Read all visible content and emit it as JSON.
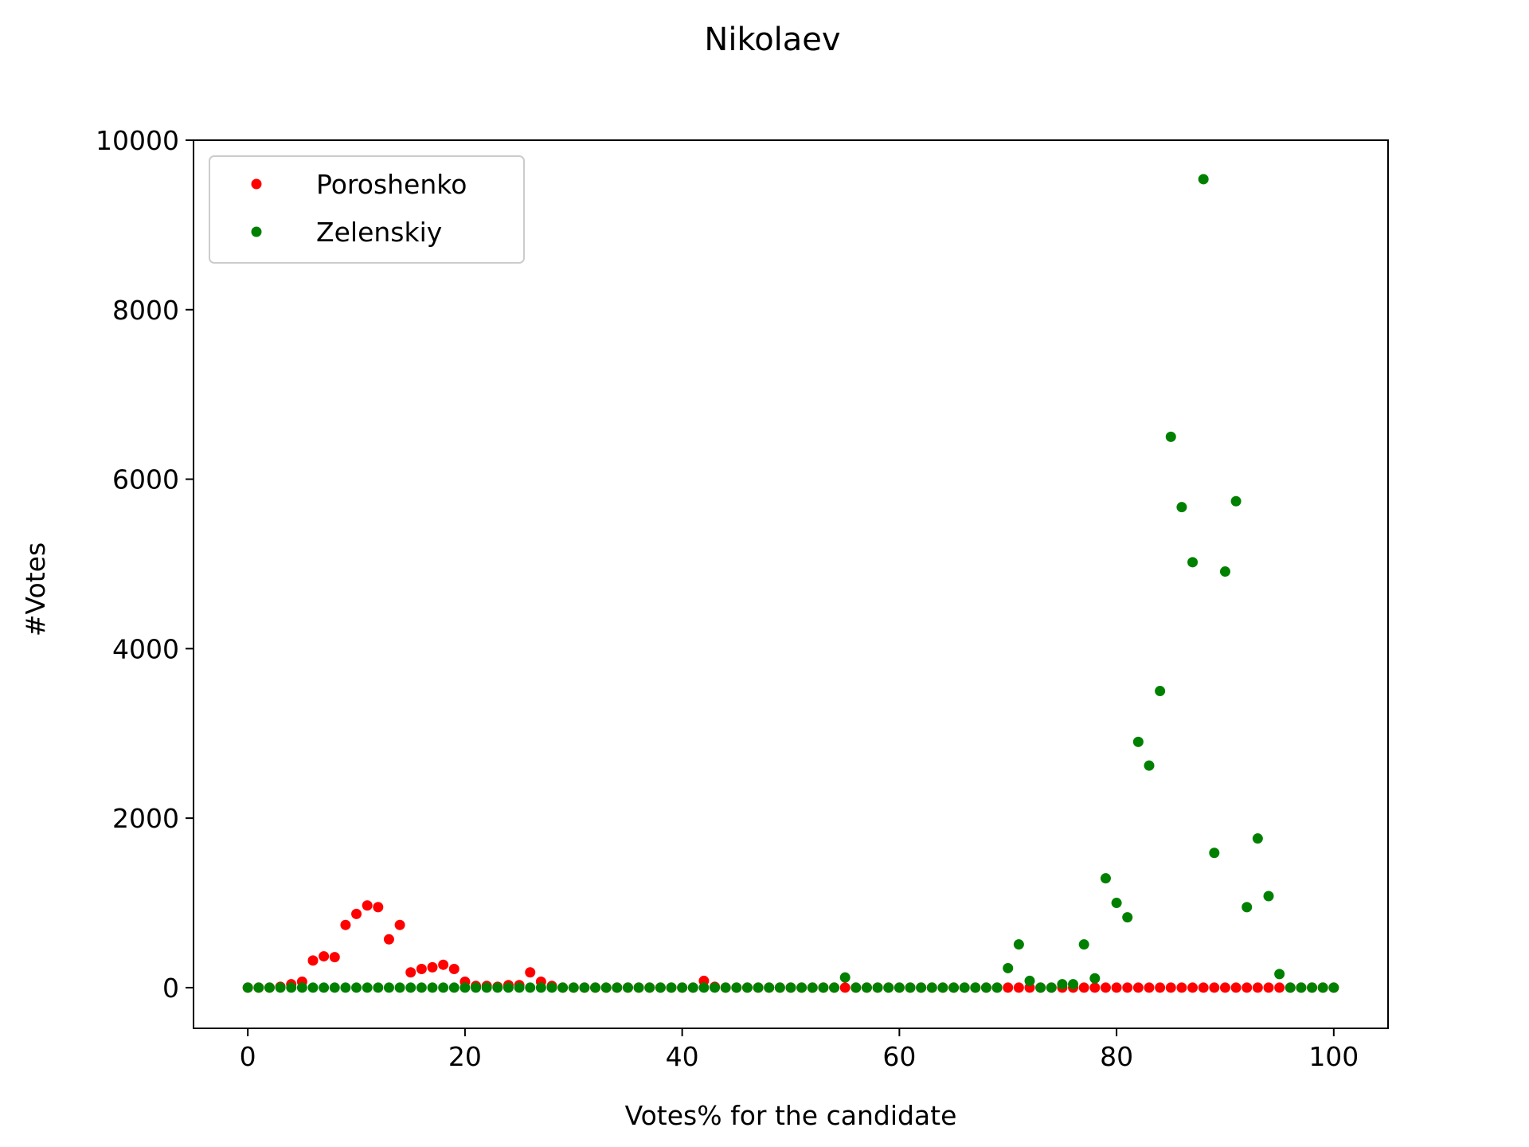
{
  "chart_data": {
    "type": "scatter",
    "title": "Nikolaev",
    "xlabel": "Votes% for the candidate",
    "ylabel": "#Votes",
    "xlim": [
      -5,
      105
    ],
    "ylim": [
      -480,
      10000
    ],
    "x_ticks": [
      0,
      20,
      40,
      60,
      80,
      100
    ],
    "y_ticks": [
      0,
      2000,
      4000,
      6000,
      8000,
      10000
    ],
    "grid": false,
    "legend_position": "upper-left",
    "series": [
      {
        "name": "Poroshenko",
        "color": "#ff0000",
        "x": [
          0,
          1,
          2,
          3,
          4,
          5,
          6,
          7,
          8,
          9,
          10,
          11,
          12,
          13,
          14,
          15,
          16,
          17,
          18,
          19,
          20,
          21,
          22,
          23,
          24,
          25,
          26,
          27,
          28,
          29,
          30,
          31,
          32,
          33,
          34,
          35,
          36,
          37,
          38,
          39,
          40,
          41,
          42,
          43,
          44,
          45,
          46,
          47,
          48,
          49,
          50,
          51,
          52,
          53,
          54,
          55,
          56,
          57,
          58,
          59,
          60,
          61,
          62,
          63,
          64,
          65,
          66,
          67,
          68,
          69,
          70,
          71,
          72,
          73,
          74,
          75,
          76,
          77,
          78,
          79,
          80,
          81,
          82,
          83,
          84,
          85,
          86,
          87,
          88,
          89,
          90,
          91,
          92,
          93,
          94,
          95,
          96,
          97,
          98,
          99,
          100
        ],
        "y": [
          0,
          0,
          0,
          10,
          40,
          70,
          320,
          370,
          360,
          740,
          870,
          970,
          950,
          570,
          740,
          180,
          220,
          240,
          270,
          220,
          70,
          20,
          20,
          10,
          30,
          30,
          180,
          70,
          20,
          0,
          0,
          0,
          0,
          0,
          0,
          0,
          0,
          0,
          0,
          0,
          0,
          0,
          80,
          10,
          0,
          0,
          0,
          0,
          0,
          0,
          0,
          0,
          0,
          0,
          0,
          0,
          0,
          0,
          0,
          0,
          0,
          0,
          0,
          0,
          0,
          0,
          0,
          0,
          0,
          0,
          0,
          0,
          0,
          0,
          0,
          0,
          0,
          0,
          0,
          0,
          0,
          0,
          0,
          0,
          0,
          0,
          0,
          0,
          0,
          0,
          0,
          0,
          0,
          0,
          0,
          0,
          0,
          0,
          0,
          0,
          0
        ]
      },
      {
        "name": "Zelenskiy",
        "color": "#008000",
        "x": [
          0,
          1,
          2,
          3,
          4,
          5,
          6,
          7,
          8,
          9,
          10,
          11,
          12,
          13,
          14,
          15,
          16,
          17,
          18,
          19,
          20,
          21,
          22,
          23,
          24,
          25,
          26,
          27,
          28,
          29,
          30,
          31,
          32,
          33,
          34,
          35,
          36,
          37,
          38,
          39,
          40,
          41,
          42,
          43,
          44,
          45,
          46,
          47,
          48,
          49,
          50,
          51,
          52,
          53,
          54,
          55,
          56,
          57,
          58,
          59,
          60,
          61,
          62,
          63,
          64,
          65,
          66,
          67,
          68,
          69,
          70,
          71,
          72,
          73,
          74,
          75,
          76,
          77,
          78,
          79,
          80,
          81,
          82,
          83,
          84,
          85,
          86,
          87,
          88,
          89,
          90,
          91,
          92,
          93,
          94,
          95,
          96,
          97,
          98,
          99,
          100
        ],
        "y": [
          0,
          0,
          0,
          0,
          0,
          0,
          0,
          0,
          0,
          0,
          0,
          0,
          0,
          0,
          0,
          0,
          0,
          0,
          0,
          0,
          0,
          0,
          0,
          0,
          0,
          0,
          0,
          0,
          0,
          0,
          0,
          0,
          0,
          0,
          0,
          0,
          0,
          0,
          0,
          0,
          0,
          0,
          0,
          0,
          0,
          0,
          0,
          0,
          0,
          0,
          0,
          0,
          0,
          0,
          0,
          120,
          0,
          0,
          0,
          0,
          0,
          0,
          0,
          0,
          0,
          0,
          0,
          0,
          0,
          0,
          230,
          510,
          80,
          0,
          0,
          40,
          40,
          510,
          110,
          1290,
          1000,
          830,
          2900,
          2620,
          3500,
          6500,
          5670,
          5020,
          9540,
          1590,
          4910,
          5740,
          950,
          1760,
          1080,
          160,
          0,
          0,
          0,
          0,
          0
        ]
      }
    ]
  }
}
